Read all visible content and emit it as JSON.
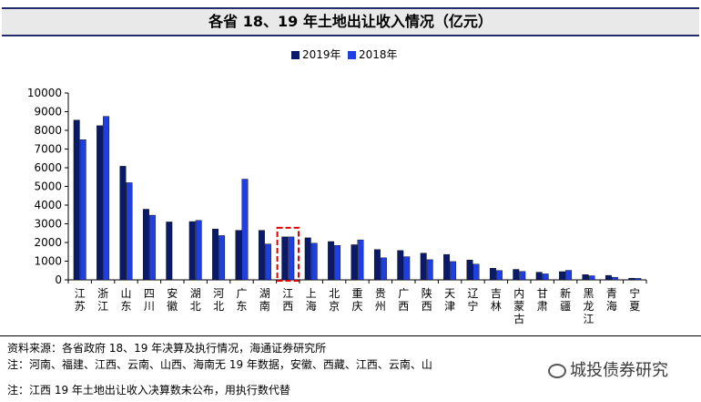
{
  "title": "各省 18、19 年土地出让收入情况（亿元）",
  "colors": {
    "series_2019": "#0a1a6b",
    "series_2018": "#1f3fe0",
    "highlight": "#e00000"
  },
  "chart_data": {
    "type": "bar",
    "title": "各省 18、19 年土地出让收入情况（亿元）",
    "xlabel": "",
    "ylabel": "",
    "ylim": [
      0,
      10000
    ],
    "yticks": [
      0,
      1000,
      2000,
      3000,
      4000,
      5000,
      6000,
      7000,
      8000,
      9000,
      10000
    ],
    "grid": false,
    "legend": "top-center",
    "categories": [
      "江苏",
      "浙江",
      "山东",
      "四川",
      "安徽",
      "湖北",
      "河北",
      "广东",
      "湖南",
      "江西",
      "上海",
      "北京",
      "重庆",
      "贵州",
      "广西",
      "陕西",
      "天津",
      "辽宁",
      "吉林",
      "内蒙古",
      "甘肃",
      "新疆",
      "黑龙江",
      "青海",
      "宁夏"
    ],
    "series": [
      {
        "name": "2019年",
        "values": [
          8550,
          8250,
          6080,
          3780,
          3100,
          3120,
          2720,
          2650,
          2650,
          2300,
          2250,
          2050,
          1880,
          1620,
          1570,
          1430,
          1360,
          1060,
          620,
          560,
          410,
          440,
          280,
          240,
          90
        ]
      },
      {
        "name": "2018年",
        "values": [
          7500,
          8750,
          5200,
          3460,
          0,
          3180,
          2370,
          5390,
          1920,
          2300,
          1960,
          1840,
          2140,
          1180,
          1240,
          1080,
          980,
          840,
          500,
          450,
          320,
          510,
          220,
          140,
          80
        ]
      }
    ],
    "highlight_category": "江西"
  },
  "footer": {
    "source": "资料来源：各省政府 18、19 年决算及执行情况，海通证券研究所",
    "note1": "注：河南、福建、江西、云南、山西、海南无 19 年数据，安徽、西藏、江西、云南、山",
    "note2": "注：江西 19 年土地出让收入决算数未公布，用执行数代替"
  },
  "watermark": "城投债券研究"
}
